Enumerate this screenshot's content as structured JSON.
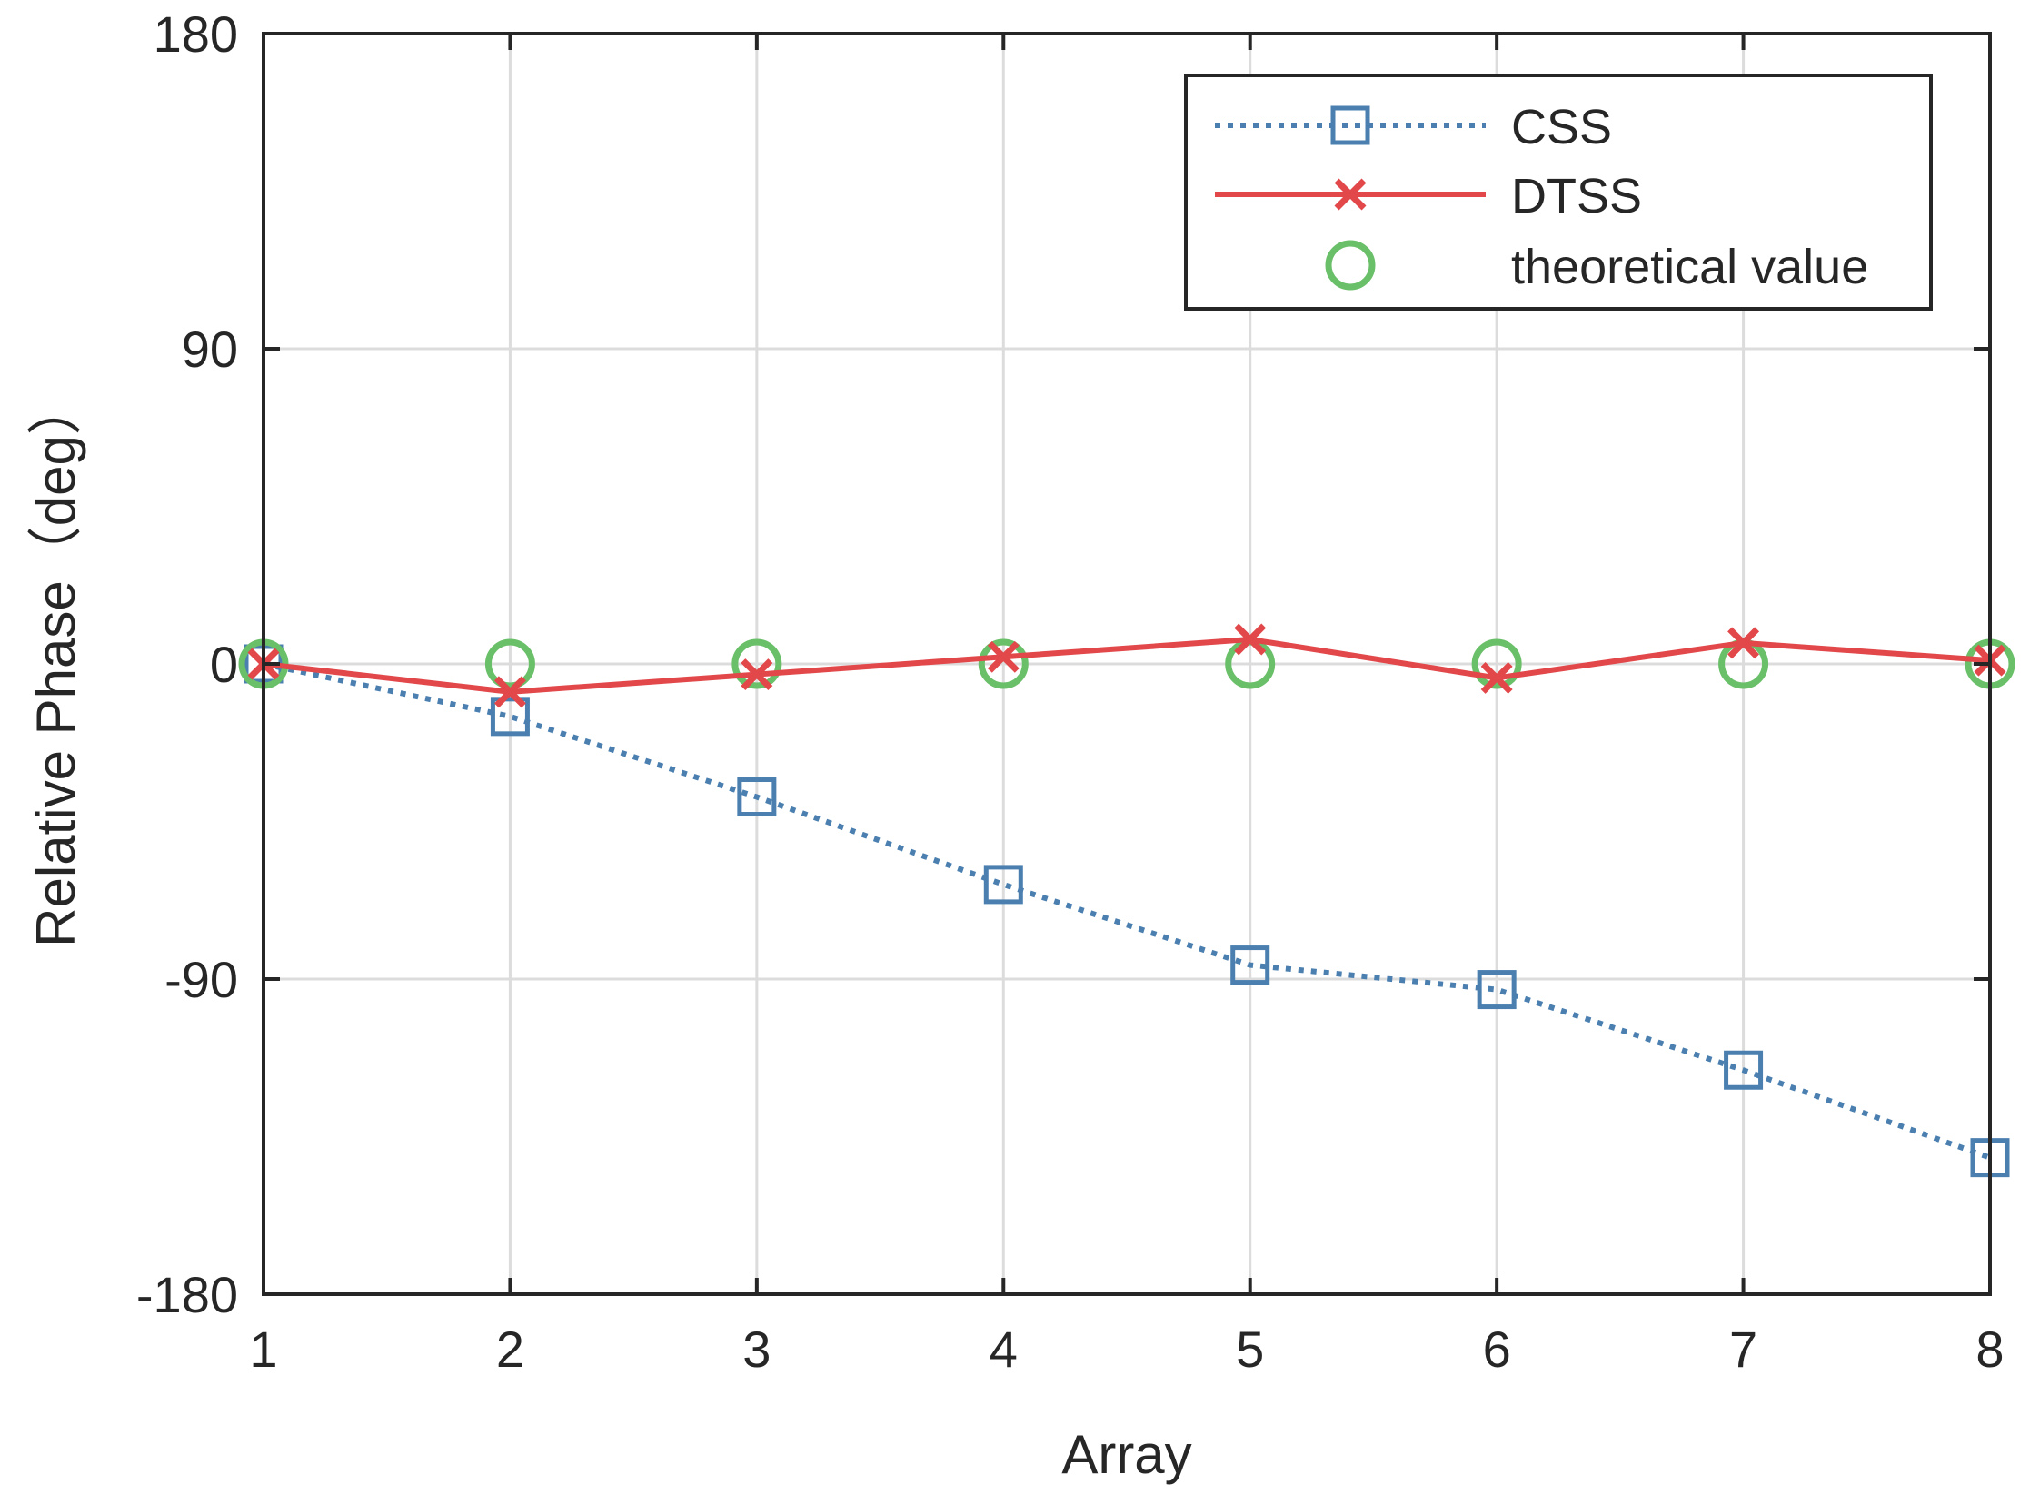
{
  "chart_data": {
    "type": "line",
    "title": "",
    "xlabel": "Array",
    "ylabel": "Relative Phase（deg）",
    "x": [
      1,
      2,
      3,
      4,
      5,
      6,
      7,
      8
    ],
    "xlim": [
      1,
      8
    ],
    "ylim": [
      -180,
      180
    ],
    "xticks": [
      "1",
      "2",
      "3",
      "4",
      "5",
      "6",
      "7",
      "8"
    ],
    "yticks": [
      "-180",
      "-90",
      "0",
      "90",
      "180"
    ],
    "ytick_values": [
      -180,
      -90,
      0,
      90,
      180
    ],
    "grid": true,
    "legend_position": "top-right",
    "series": [
      {
        "name": "CSS",
        "style": "dotted",
        "marker": "square",
        "color": "#4a7fb0",
        "values": [
          0,
          -15,
          -38,
          -63,
          -86,
          -93,
          -116,
          -141
        ]
      },
      {
        "name": "DTSS",
        "style": "solid",
        "marker": "x",
        "color": "#e2474a",
        "values": [
          0,
          -8,
          -3,
          2,
          7,
          -4,
          6,
          1
        ]
      },
      {
        "name": "theoretical value",
        "style": "none",
        "marker": "circle",
        "color": "#6abf69",
        "values": [
          0,
          0,
          0,
          0,
          0,
          0,
          0,
          0
        ]
      }
    ]
  }
}
